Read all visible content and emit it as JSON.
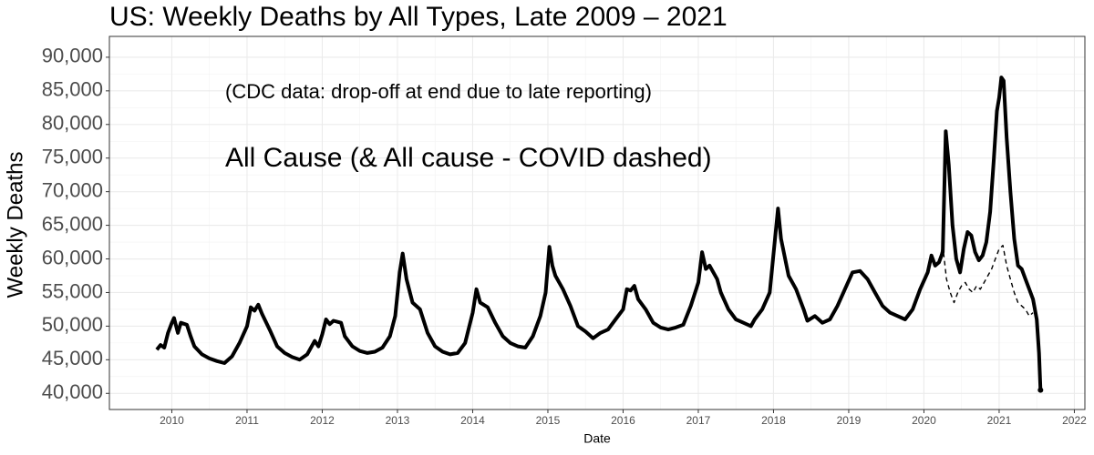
{
  "chart_data": {
    "type": "line",
    "title": "US: Weekly Deaths by All Types, Late 2009 – 2021",
    "xlabel": "Date",
    "ylabel": "Weekly Deaths",
    "annotations": [
      "(CDC data: drop-off at end due to late reporting)",
      "All Cause (& All cause - COVID dashed)"
    ],
    "xlim": [
      2009.17,
      2022.14
    ],
    "xticks": [
      2010,
      2011,
      2012,
      2013,
      2014,
      2015,
      2016,
      2017,
      2018,
      2019,
      2020,
      2021,
      2022
    ],
    "ylim": [
      37600,
      93100
    ],
    "yticks": [
      {
        "value": 40000,
        "label": "40,000"
      },
      {
        "value": 45000,
        "label": "45,000"
      },
      {
        "value": 50000,
        "label": "50,000"
      },
      {
        "value": 55000,
        "label": "55,000"
      },
      {
        "value": 60000,
        "label": "60,000"
      },
      {
        "value": 65000,
        "label": "65,000"
      },
      {
        "value": 70000,
        "label": "70,000"
      },
      {
        "value": 75000,
        "label": "75,000"
      },
      {
        "value": 80000,
        "label": "80,000"
      },
      {
        "value": 85000,
        "label": "85,000"
      },
      {
        "value": 90000,
        "label": "90,000"
      }
    ],
    "grid": true,
    "minor_grid": true,
    "series": [
      {
        "color": "#000000",
        "dash": false,
        "x": [
          2009.8,
          2009.85,
          2009.9,
          2009.95,
          2010.0,
          2010.03,
          2010.08,
          2010.12,
          2010.2,
          2010.25,
          2010.3,
          2010.4,
          2010.5,
          2010.6,
          2010.7,
          2010.8,
          2010.9,
          2011.0,
          2011.05,
          2011.1,
          2011.15,
          2011.2,
          2011.3,
          2011.4,
          2011.5,
          2011.6,
          2011.7,
          2011.8,
          2011.9,
          2011.95,
          2012.0,
          2012.05,
          2012.1,
          2012.15,
          2012.25,
          2012.3,
          2012.4,
          2012.5,
          2012.6,
          2012.7,
          2012.8,
          2012.9,
          2012.97,
          2013.03,
          2013.07,
          2013.12,
          2013.2,
          2013.3,
          2013.4,
          2013.5,
          2013.6,
          2013.7,
          2013.8,
          2013.9,
          2014.0,
          2014.05,
          2014.1,
          2014.2,
          2014.3,
          2014.4,
          2014.5,
          2014.6,
          2014.7,
          2014.8,
          2014.9,
          2014.97,
          2015.02,
          2015.06,
          2015.1,
          2015.2,
          2015.3,
          2015.4,
          2015.5,
          2015.6,
          2015.7,
          2015.8,
          2015.9,
          2016.0,
          2016.05,
          2016.1,
          2016.15,
          2016.2,
          2016.3,
          2016.4,
          2016.5,
          2016.6,
          2016.7,
          2016.8,
          2016.9,
          2017.0,
          2017.05,
          2017.1,
          2017.15,
          2017.25,
          2017.3,
          2017.4,
          2017.5,
          2017.6,
          2017.7,
          2017.75,
          2017.85,
          2017.95,
          2018.02,
          2018.06,
          2018.1,
          2018.2,
          2018.3,
          2018.4,
          2018.45,
          2018.55,
          2018.65,
          2018.75,
          2018.85,
          2018.95,
          2019.05,
          2019.15,
          2019.25,
          2019.35,
          2019.45,
          2019.55,
          2019.65,
          2019.75,
          2019.85,
          2019.95,
          2020.05,
          2020.1,
          2020.15,
          2020.2,
          2020.25,
          2020.29,
          2020.33,
          2020.38,
          2020.43,
          2020.48,
          2020.53,
          2020.58,
          2020.63,
          2020.68,
          2020.73,
          2020.78,
          2020.83,
          2020.88,
          2020.93,
          2020.97,
          2021.0,
          2021.03,
          2021.06,
          2021.1,
          2021.15,
          2021.2,
          2021.25,
          2021.3,
          2021.35,
          2021.4,
          2021.45,
          2021.5,
          2021.53,
          2021.55
        ],
        "values": [
          46500,
          47200,
          46800,
          49000,
          50500,
          51200,
          49000,
          50500,
          50200,
          48500,
          47000,
          45800,
          45200,
          44800,
          44500,
          45500,
          47500,
          50000,
          52800,
          52300,
          53200,
          51800,
          49500,
          47000,
          46000,
          45400,
          45000,
          45800,
          47800,
          47000,
          48800,
          51000,
          50300,
          50800,
          50500,
          48500,
          47000,
          46300,
          46000,
          46200,
          46800,
          48500,
          51500,
          58000,
          60800,
          57000,
          53500,
          52500,
          49000,
          47000,
          46200,
          45800,
          46000,
          47500,
          52000,
          55500,
          53500,
          52800,
          50500,
          48500,
          47500,
          47000,
          46800,
          48500,
          51500,
          55000,
          61800,
          59000,
          57500,
          55500,
          53000,
          50000,
          49200,
          48200,
          49000,
          49500,
          51000,
          52500,
          55500,
          55300,
          56000,
          54000,
          52500,
          50500,
          49800,
          49500,
          49800,
          50200,
          53000,
          56500,
          61000,
          58500,
          59000,
          57000,
          55000,
          52500,
          51000,
          50500,
          50000,
          51000,
          52500,
          55000,
          63000,
          67500,
          63000,
          57500,
          55500,
          52500,
          50800,
          51500,
          50500,
          51000,
          53000,
          55500,
          58000,
          58200,
          57000,
          55000,
          53000,
          52000,
          51500,
          51000,
          52500,
          55500,
          58000,
          60500,
          59000,
          59500,
          61000,
          79000,
          74000,
          65000,
          60000,
          58000,
          61500,
          64000,
          63500,
          61000,
          59800,
          60500,
          62500,
          67000,
          75000,
          82000,
          84000,
          87000,
          86500,
          78000,
          70000,
          63000,
          59000,
          58500,
          57000,
          55500,
          54000,
          51000,
          46000,
          40500
        ]
      },
      {
        "color": "#000000",
        "dash": true,
        "x": [
          2020.2,
          2020.25,
          2020.3,
          2020.35,
          2020.4,
          2020.45,
          2020.5,
          2020.55,
          2020.6,
          2020.65,
          2020.7,
          2020.75,
          2020.8,
          2020.85,
          2020.9,
          2020.95,
          2021.0,
          2021.05,
          2021.1,
          2021.15,
          2021.2,
          2021.25,
          2021.3,
          2021.35,
          2021.4,
          2021.45
        ],
        "values": [
          59500,
          62000,
          57000,
          55000,
          53500,
          55000,
          56000,
          56500,
          55500,
          55000,
          56000,
          55500,
          56500,
          57500,
          58500,
          60000,
          61500,
          62000,
          59000,
          57000,
          55000,
          53500,
          53000,
          52500,
          51500,
          52000
        ]
      }
    ]
  }
}
